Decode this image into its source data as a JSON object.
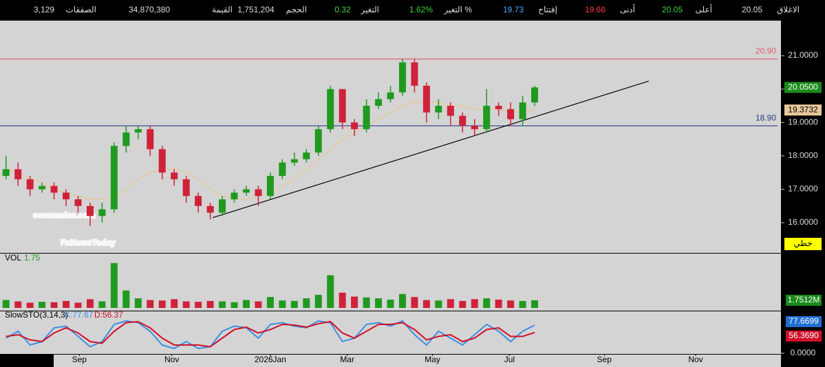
{
  "header": {
    "stats": [
      {
        "label": "الاغلاق",
        "value": "20.05"
      },
      {
        "label": "أعلى",
        "value": "20.05"
      },
      {
        "label": "أدنى",
        "value": "19.66"
      },
      {
        "label": "إفتتاح",
        "value": "19.73"
      },
      {
        "label": "التغير %",
        "value": "1.62%"
      },
      {
        "label": "التغير",
        "value": "0.32"
      },
      {
        "label": "الحجم",
        "value": "1,751,204"
      },
      {
        "label": "القيمة",
        "value": "34,870,380"
      },
      {
        "label": "الصفقات",
        "value": "3,129"
      }
    ]
  },
  "chart_data": [
    {
      "type": "candlestick",
      "up_color": "#1f9a1f",
      "down_color": "#d0213a",
      "x": [
        0.5,
        1.5,
        2.5,
        3.5,
        4.5,
        5.5,
        6.5,
        7.5,
        8.5,
        9.5,
        10.5,
        11.5,
        12.5,
        13.5,
        14.5,
        15.5,
        16.5,
        17.5,
        18.5,
        19.5,
        20.5,
        21.5,
        22.5,
        23.5,
        24.5,
        25.5,
        26.5,
        27.5,
        28.5,
        29.5,
        30.5,
        31.5,
        32.5,
        33.5,
        34.5,
        35.5,
        36.5,
        37.5,
        38.5,
        39.5,
        40.5,
        41.5,
        42.5,
        43.5,
        44.5
      ],
      "open": [
        17.4,
        17.6,
        17.3,
        17.0,
        17.1,
        16.9,
        16.7,
        16.5,
        16.2,
        16.4,
        18.3,
        18.7,
        18.8,
        18.2,
        17.5,
        17.3,
        16.8,
        16.5,
        16.3,
        16.7,
        16.9,
        17.0,
        16.8,
        17.4,
        17.8,
        17.9,
        18.1,
        18.8,
        20.0,
        19.0,
        18.8,
        19.5,
        19.7,
        19.9,
        20.8,
        20.1,
        19.3,
        19.5,
        19.2,
        18.9,
        18.8,
        19.5,
        19.4,
        19.1,
        19.6
      ],
      "high": [
        18.0,
        17.8,
        17.4,
        17.2,
        17.2,
        17.0,
        16.8,
        16.6,
        16.6,
        18.4,
        18.9,
        18.9,
        18.9,
        18.3,
        17.6,
        17.4,
        16.9,
        16.6,
        16.8,
        17.0,
        17.1,
        17.1,
        17.5,
        17.9,
        18.1,
        18.2,
        18.9,
        20.1,
        20.0,
        19.1,
        19.7,
        19.9,
        20.1,
        20.9,
        20.9,
        20.2,
        19.7,
        19.6,
        19.3,
        19.1,
        20.0,
        19.6,
        19.6,
        19.8,
        20.1
      ],
      "low": [
        17.3,
        17.1,
        16.8,
        16.9,
        16.7,
        16.5,
        16.3,
        15.9,
        16.0,
        16.3,
        18.1,
        18.5,
        18.0,
        17.3,
        17.1,
        16.6,
        16.3,
        16.1,
        16.2,
        16.6,
        16.8,
        16.5,
        16.7,
        17.3,
        17.7,
        17.8,
        18.0,
        18.7,
        18.8,
        18.6,
        18.7,
        19.4,
        19.6,
        19.8,
        19.9,
        19.0,
        19.1,
        18.9,
        18.7,
        18.6,
        18.7,
        19.2,
        18.9,
        18.9,
        19.5
      ],
      "close": [
        17.6,
        17.3,
        17.0,
        17.1,
        16.9,
        16.7,
        16.5,
        16.2,
        16.4,
        18.3,
        18.7,
        18.8,
        18.2,
        17.5,
        17.3,
        16.8,
        16.5,
        16.3,
        16.7,
        16.9,
        17.0,
        16.8,
        17.4,
        17.8,
        17.9,
        18.1,
        18.8,
        20.0,
        19.0,
        18.8,
        19.5,
        19.7,
        19.9,
        20.8,
        20.1,
        19.3,
        19.5,
        19.2,
        18.9,
        18.8,
        19.5,
        19.4,
        19.1,
        19.6,
        20.05
      ],
      "ma": {
        "color": "#e6c89c",
        "values": [
          17.6,
          17.5,
          17.3,
          17.2,
          17.0,
          16.9,
          16.8,
          16.7,
          16.7,
          16.8,
          17.0,
          17.3,
          17.5,
          17.6,
          17.6,
          17.5,
          17.3,
          17.0,
          16.8,
          16.7,
          16.7,
          16.8,
          16.9,
          17.1,
          17.3,
          17.6,
          17.9,
          18.2,
          18.5,
          18.7,
          18.9,
          19.1,
          19.3,
          19.5,
          19.6,
          19.6,
          19.6,
          19.5,
          19.5,
          19.4,
          19.4,
          19.4,
          19.3,
          19.35,
          19.37
        ],
        "tag": {
          "value": 19.3732,
          "label": "19.3732"
        }
      },
      "last_tag": {
        "value": 20.05,
        "label": "20.0500"
      },
      "hlines": [
        {
          "value": 20.9,
          "label": "20.90",
          "color": "#e06070"
        },
        {
          "value": 18.9,
          "label": "18.90",
          "color": "#2a3a8a"
        }
      ],
      "trendline": {
        "x": [
          17.7,
          54
        ],
        "y": [
          16.15,
          20.24
        ],
        "color": "#000000"
      },
      "xlim": [
        0,
        65
      ],
      "ylim": [
        15.095,
        22.05
      ],
      "yticks": [
        {
          "value": 16,
          "label": "16.0000"
        },
        {
          "value": 17,
          "label": "17.0000"
        },
        {
          "value": 18,
          "label": "18.0000"
        },
        {
          "value": 19,
          "label": "19.0000"
        },
        {
          "value": 20,
          "label": "20.0000"
        },
        {
          "value": 21,
          "label": "21.0000"
        }
      ],
      "scale_button": "خطي",
      "watermark": [
        "economies.com",
        "FxNewsToday"
      ]
    },
    {
      "type": "bar",
      "name": "VOL",
      "legend_value": 1.75,
      "values": [
        1.8,
        1.5,
        1.2,
        1.4,
        1.3,
        1.6,
        1.2,
        2.0,
        1.5,
        10.3,
        4.0,
        2.2,
        1.8,
        1.7,
        2.0,
        1.5,
        1.4,
        1.6,
        1.5,
        1.3,
        1.8,
        1.5,
        2.5,
        1.7,
        1.6,
        2.2,
        3.0,
        7.5,
        3.5,
        2.6,
        2.4,
        2.2,
        1.9,
        3.2,
        2.5,
        1.8,
        1.7,
        2.0,
        1.6,
        2.0,
        2.2,
        1.9,
        1.7,
        1.6,
        1.75
      ],
      "ylim": [
        0,
        12
      ],
      "tag": {
        "value": 1.7512,
        "label": "1.7512M"
      }
    },
    {
      "type": "line",
      "title": "SlowSTO(3,14,3)",
      "series": [
        {
          "name": "K:77.67",
          "color": "#3b8fe0",
          "values": [
            40,
            60,
            20,
            30,
            70,
            75,
            45,
            15,
            30,
            80,
            90,
            85,
            60,
            20,
            10,
            30,
            10,
            15,
            60,
            75,
            70,
            40,
            80,
            85,
            75,
            70,
            90,
            85,
            30,
            40,
            80,
            85,
            75,
            90,
            50,
            20,
            60,
            40,
            20,
            50,
            80,
            60,
            30,
            60,
            77.67
          ],
          "tag": {
            "value": 77.6699,
            "label": "77.6699"
          }
        },
        {
          "name": "D:56.37",
          "color": "#d0102a",
          "values": [
            45,
            50,
            35,
            30,
            55,
            70,
            55,
            30,
            25,
            60,
            85,
            88,
            70,
            40,
            20,
            20,
            20,
            15,
            40,
            65,
            72,
            55,
            65,
            80,
            78,
            72,
            82,
            88,
            55,
            40,
            60,
            80,
            80,
            85,
            65,
            35,
            45,
            50,
            30,
            40,
            65,
            70,
            45,
            45,
            56.37
          ],
          "tag": {
            "value": 56.369,
            "label": "56.3690"
          }
        }
      ],
      "ylim": [
        0,
        100
      ],
      "yticks": [
        {
          "value": 0,
          "label": "0.0000"
        }
      ],
      "xticks": [
        {
          "value": 6.6,
          "label": "Sep"
        },
        {
          "value": 14.3,
          "label": "Nov"
        },
        {
          "value": 22.5,
          "label": "2026Jan"
        },
        {
          "value": 28.9,
          "label": "Mar"
        },
        {
          "value": 36,
          "label": "May"
        },
        {
          "value": 42.4,
          "label": "Jul"
        },
        {
          "value": 50.3,
          "label": "Sep"
        },
        {
          "value": 57.9,
          "label": "Nov"
        }
      ]
    }
  ]
}
